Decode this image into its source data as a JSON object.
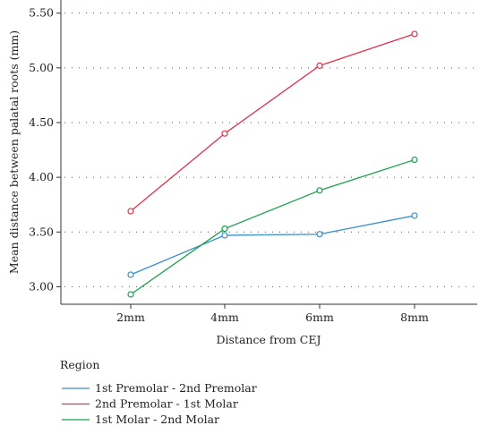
{
  "chart_data": {
    "type": "line",
    "categories": [
      "2mm",
      "4mm",
      "6mm",
      "8mm"
    ],
    "xlabel": "Distance from CEJ",
    "ylabel": "Mean distance between palatal roots (mm)",
    "ylim": [
      2.84,
      5.62
    ],
    "yticks": [
      "3.00",
      "3.50",
      "4.00",
      "4.50",
      "5.00",
      "5.50"
    ],
    "grid": "dotted-horizontal",
    "legend": {
      "title": "Region",
      "placement": "bottom-left"
    },
    "series": [
      {
        "name": "1st Premolar - 2nd Premolar",
        "color": "#3a8fcc",
        "values": [
          3.11,
          3.47,
          3.48,
          3.65
        ]
      },
      {
        "name": "2nd Premolar - 1st Molar",
        "color": "#e0314b",
        "values": [
          3.69,
          4.4,
          5.02,
          5.31
        ]
      },
      {
        "name": "1st Molar - 2nd Molar",
        "color": "#16a04a",
        "values": [
          2.93,
          3.53,
          3.88,
          4.16
        ]
      }
    ]
  }
}
